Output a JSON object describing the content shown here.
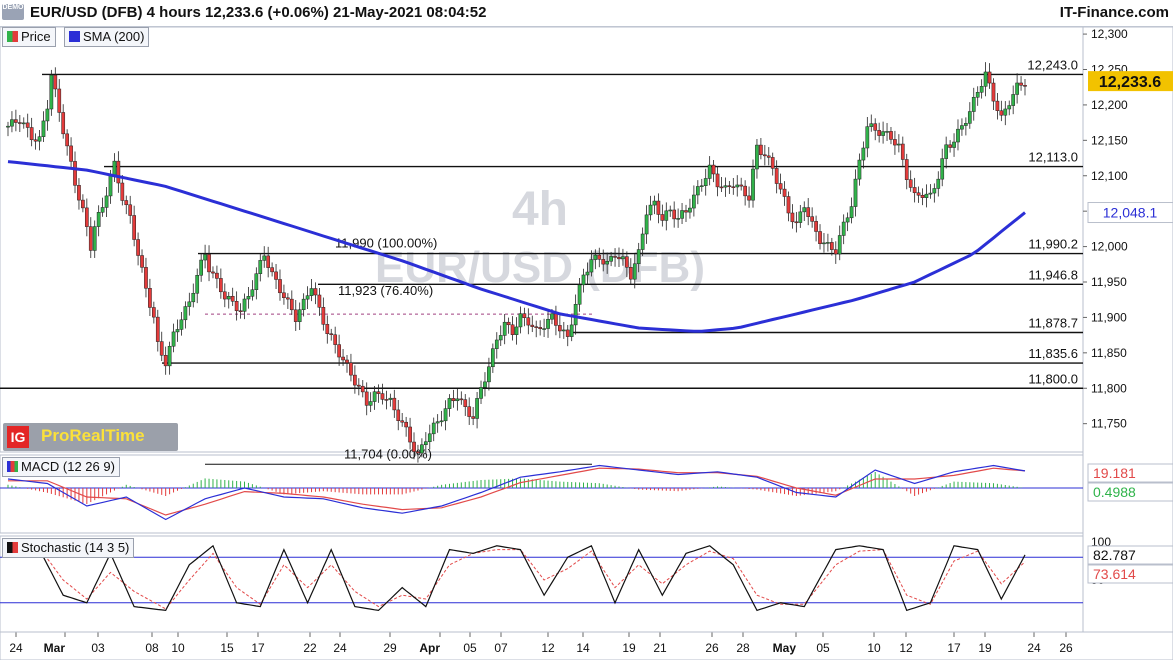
{
  "header": {
    "badge": "DEMO",
    "title": "EUR/USD (DFB) 4 hours 12,233.6 (+0.06%) 21-May-2021 08:04:52",
    "brand": "IT-Finance.com"
  },
  "watermark": {
    "timeframe": "4h",
    "symbol": "EUR/USD (DFB)"
  },
  "provider": {
    "logo": "IG",
    "name": "ProRealTime"
  },
  "colors": {
    "up": "#31b24a",
    "down": "#e33b3b",
    "sma": "#2b2fd6",
    "price_badge": "#f2c200",
    "sma_badge": "#2b2fd6",
    "macd_line": "#2b2fd6",
    "signal_line": "#e24a4a",
    "hist": "#2fb34a",
    "stoch_k": "#111111",
    "stoch_d": "#e24a4a"
  },
  "legend": {
    "price": "Price",
    "sma": "SMA (200)",
    "macd": "MACD (12 26 9)",
    "stoch": "Stochastic (14 3 5)"
  },
  "chart_data": [
    {
      "type": "candlestick",
      "title": "EUR/USD (DFB) 4 hours",
      "y_ticks": [
        "12,300",
        "12,250",
        "12,200",
        "12,150",
        "12,100",
        "12,050",
        "12,000",
        "11,950",
        "11,900",
        "11,850",
        "11,800",
        "11,750"
      ],
      "ylim": [
        11710,
        12310
      ],
      "x_ticks": [
        "24",
        "Mar",
        "03",
        "08",
        "10",
        "15",
        "17",
        "22",
        "24",
        "29",
        "Apr",
        "05",
        "07",
        "12",
        "14",
        "19",
        "21",
        "26",
        "28",
        "May",
        "05",
        "10",
        "12",
        "17",
        "19",
        "24",
        "26"
      ],
      "last_price": "12,233.6",
      "sma_value": "12,048.1",
      "levels": [
        {
          "label": "12,243.0",
          "value": 12243.0
        },
        {
          "label": "12,113.0",
          "value": 12113.0
        },
        {
          "label": "11,990.2",
          "value": 11990.2
        },
        {
          "label": "11,946.8",
          "value": 11946.8
        },
        {
          "label": "11,878.7",
          "value": 11878.7
        },
        {
          "label": "11,835.6",
          "value": 11835.6
        },
        {
          "label": "11,800.0",
          "value": 11800.0
        }
      ],
      "fib_labels": [
        {
          "label": "11,990 (100.00%)",
          "value": 11990
        },
        {
          "label": "11,923 (76.40%)",
          "value": 11923
        },
        {
          "label": "11,704 (0.00%)",
          "value": 11704
        }
      ],
      "price_path": [
        [
          0,
          12170
        ],
        [
          3,
          12180
        ],
        [
          6,
          12155
        ],
        [
          8,
          12150
        ],
        [
          10,
          12200
        ],
        [
          11,
          12243
        ],
        [
          13,
          12190
        ],
        [
          15,
          12140
        ],
        [
          17,
          12090
        ],
        [
          19,
          12050
        ],
        [
          21,
          12000
        ],
        [
          22,
          12030
        ],
        [
          24,
          12055
        ],
        [
          26,
          12100
        ],
        [
          27,
          12115
        ],
        [
          29,
          12070
        ],
        [
          31,
          12040
        ],
        [
          33,
          11990
        ],
        [
          35,
          11940
        ],
        [
          37,
          11900
        ],
        [
          38,
          11860
        ],
        [
          40,
          11837
        ],
        [
          42,
          11875
        ],
        [
          44,
          11900
        ],
        [
          46,
          11920
        ],
        [
          48,
          11960
        ],
        [
          50,
          11990
        ],
        [
          51,
          11970
        ],
        [
          53,
          11950
        ],
        [
          55,
          11930
        ],
        [
          57,
          11920
        ],
        [
          59,
          11910
        ],
        [
          61,
          11930
        ],
        [
          63,
          11960
        ],
        [
          65,
          11990
        ],
        [
          67,
          11960
        ],
        [
          69,
          11940
        ],
        [
          71,
          11920
        ],
        [
          73,
          11900
        ],
        [
          75,
          11920
        ],
        [
          77,
          11946
        ],
        [
          79,
          11910
        ],
        [
          81,
          11880
        ],
        [
          83,
          11860
        ],
        [
          85,
          11840
        ],
        [
          87,
          11820
        ],
        [
          89,
          11800
        ],
        [
          91,
          11780
        ],
        [
          93,
          11790
        ],
        [
          95,
          11790
        ],
        [
          97,
          11780
        ],
        [
          99,
          11760
        ],
        [
          101,
          11740
        ],
        [
          103,
          11715
        ],
        [
          104,
          11704
        ],
        [
          106,
          11730
        ],
        [
          108,
          11745
        ],
        [
          110,
          11760
        ],
        [
          112,
          11780
        ],
        [
          114,
          11790
        ],
        [
          116,
          11770
        ],
        [
          118,
          11760
        ],
        [
          120,
          11800
        ],
        [
          122,
          11830
        ],
        [
          124,
          11870
        ],
        [
          126,
          11890
        ],
        [
          128,
          11880
        ],
        [
          130,
          11900
        ],
        [
          132,
          11895
        ],
        [
          134,
          11880
        ],
        [
          136,
          11890
        ],
        [
          138,
          11900
        ],
        [
          140,
          11885
        ],
        [
          142,
          11870
        ],
        [
          144,
          11920
        ],
        [
          146,
          11960
        ],
        [
          148,
          11980
        ],
        [
          150,
          11985
        ],
        [
          152,
          11975
        ],
        [
          154,
          11990
        ],
        [
          156,
          11980
        ],
        [
          158,
          11960
        ],
        [
          160,
          11990
        ],
        [
          162,
          12050
        ],
        [
          164,
          12060
        ],
        [
          166,
          12040
        ],
        [
          168,
          12050
        ],
        [
          170,
          12040
        ],
        [
          172,
          12050
        ],
        [
          174,
          12070
        ],
        [
          176,
          12090
        ],
        [
          178,
          12110
        ],
        [
          180,
          12090
        ],
        [
          182,
          12080
        ],
        [
          184,
          12090
        ],
        [
          186,
          12080
        ],
        [
          188,
          12070
        ],
        [
          190,
          12140
        ],
        [
          192,
          12130
        ],
        [
          194,
          12110
        ],
        [
          196,
          12080
        ],
        [
          198,
          12050
        ],
        [
          200,
          12030
        ],
        [
          202,
          12060
        ],
        [
          204,
          12030
        ],
        [
          206,
          12010
        ],
        [
          208,
          12000
        ],
        [
          210,
          11995
        ],
        [
          212,
          12030
        ],
        [
          214,
          12060
        ],
        [
          216,
          12120
        ],
        [
          218,
          12170
        ],
        [
          220,
          12165
        ],
        [
          222,
          12160
        ],
        [
          224,
          12155
        ],
        [
          226,
          12140
        ],
        [
          228,
          12100
        ],
        [
          230,
          12070
        ],
        [
          232,
          12075
        ],
        [
          234,
          12070
        ],
        [
          236,
          12100
        ],
        [
          238,
          12140
        ],
        [
          240,
          12150
        ],
        [
          242,
          12170
        ],
        [
          244,
          12190
        ],
        [
          246,
          12220
        ],
        [
          248,
          12243
        ],
        [
          250,
          12210
        ],
        [
          252,
          12180
        ],
        [
          254,
          12205
        ],
        [
          256,
          12225
        ],
        [
          258,
          12233
        ]
      ],
      "sma_path": [
        [
          0,
          12120
        ],
        [
          20,
          12108
        ],
        [
          40,
          12085
        ],
        [
          60,
          12050
        ],
        [
          80,
          12015
        ],
        [
          100,
          11980
        ],
        [
          120,
          11940
        ],
        [
          140,
          11905
        ],
        [
          160,
          11885
        ],
        [
          175,
          11880
        ],
        [
          185,
          11885
        ],
        [
          200,
          11905
        ],
        [
          215,
          11925
        ],
        [
          230,
          11950
        ],
        [
          245,
          11990
        ],
        [
          258,
          12048
        ]
      ]
    },
    {
      "type": "line",
      "title": "MACD (12 26 9)",
      "values_shown": [
        "19.181",
        "0.4988"
      ],
      "macd_path": [
        [
          0,
          10
        ],
        [
          10,
          5
        ],
        [
          20,
          -20
        ],
        [
          30,
          -10
        ],
        [
          40,
          -35
        ],
        [
          50,
          -12
        ],
        [
          60,
          0
        ],
        [
          70,
          -10
        ],
        [
          80,
          -12
        ],
        [
          90,
          -22
        ],
        [
          100,
          -28
        ],
        [
          110,
          -20
        ],
        [
          120,
          -5
        ],
        [
          130,
          12
        ],
        [
          140,
          18
        ],
        [
          150,
          25
        ],
        [
          160,
          20
        ],
        [
          170,
          15
        ],
        [
          180,
          18
        ],
        [
          190,
          12
        ],
        [
          200,
          -5
        ],
        [
          210,
          -10
        ],
        [
          220,
          20
        ],
        [
          230,
          5
        ],
        [
          240,
          18
        ],
        [
          250,
          25
        ],
        [
          258,
          19
        ]
      ],
      "signal_path": [
        [
          0,
          8
        ],
        [
          10,
          8
        ],
        [
          20,
          -10
        ],
        [
          30,
          -12
        ],
        [
          40,
          -30
        ],
        [
          50,
          -18
        ],
        [
          60,
          -4
        ],
        [
          70,
          -6
        ],
        [
          80,
          -10
        ],
        [
          90,
          -18
        ],
        [
          100,
          -24
        ],
        [
          110,
          -22
        ],
        [
          120,
          -10
        ],
        [
          130,
          6
        ],
        [
          140,
          14
        ],
        [
          150,
          22
        ],
        [
          160,
          21
        ],
        [
          170,
          17
        ],
        [
          180,
          17
        ],
        [
          190,
          13
        ],
        [
          200,
          0
        ],
        [
          210,
          -8
        ],
        [
          220,
          10
        ],
        [
          230,
          10
        ],
        [
          240,
          14
        ],
        [
          250,
          22
        ],
        [
          258,
          19
        ]
      ]
    },
    {
      "type": "line",
      "title": "Stochastic (14 3 5)",
      "values_shown": [
        "82.787",
        "73.614"
      ],
      "y_ticks": [
        "100",
        "50"
      ],
      "k_path": [
        [
          0,
          95
        ],
        [
          8,
          90
        ],
        [
          14,
          30
        ],
        [
          20,
          20
        ],
        [
          26,
          85
        ],
        [
          32,
          15
        ],
        [
          40,
          10
        ],
        [
          46,
          70
        ],
        [
          52,
          95
        ],
        [
          58,
          20
        ],
        [
          64,
          15
        ],
        [
          70,
          90
        ],
        [
          76,
          20
        ],
        [
          82,
          90
        ],
        [
          88,
          15
        ],
        [
          94,
          10
        ],
        [
          100,
          40
        ],
        [
          106,
          15
        ],
        [
          112,
          90
        ],
        [
          118,
          85
        ],
        [
          124,
          95
        ],
        [
          130,
          90
        ],
        [
          136,
          30
        ],
        [
          142,
          80
        ],
        [
          148,
          95
        ],
        [
          154,
          20
        ],
        [
          160,
          90
        ],
        [
          166,
          30
        ],
        [
          172,
          85
        ],
        [
          178,
          95
        ],
        [
          184,
          70
        ],
        [
          190,
          10
        ],
        [
          196,
          20
        ],
        [
          202,
          15
        ],
        [
          210,
          90
        ],
        [
          216,
          95
        ],
        [
          222,
          90
        ],
        [
          228,
          10
        ],
        [
          234,
          20
        ],
        [
          240,
          95
        ],
        [
          246,
          90
        ],
        [
          252,
          25
        ],
        [
          258,
          83
        ]
      ],
      "d_path": [
        [
          0,
          90
        ],
        [
          8,
          92
        ],
        [
          14,
          50
        ],
        [
          20,
          25
        ],
        [
          26,
          60
        ],
        [
          32,
          35
        ],
        [
          40,
          12
        ],
        [
          46,
          50
        ],
        [
          52,
          85
        ],
        [
          58,
          40
        ],
        [
          64,
          18
        ],
        [
          70,
          70
        ],
        [
          76,
          40
        ],
        [
          82,
          70
        ],
        [
          88,
          35
        ],
        [
          94,
          15
        ],
        [
          100,
          30
        ],
        [
          106,
          25
        ],
        [
          112,
          70
        ],
        [
          118,
          85
        ],
        [
          124,
          90
        ],
        [
          130,
          90
        ],
        [
          136,
          50
        ],
        [
          142,
          65
        ],
        [
          148,
          88
        ],
        [
          154,
          40
        ],
        [
          160,
          70
        ],
        [
          166,
          45
        ],
        [
          172,
          70
        ],
        [
          178,
          88
        ],
        [
          184,
          78
        ],
        [
          190,
          30
        ],
        [
          196,
          18
        ],
        [
          202,
          18
        ],
        [
          210,
          70
        ],
        [
          216,
          88
        ],
        [
          222,
          90
        ],
        [
          228,
          30
        ],
        [
          234,
          18
        ],
        [
          240,
          75
        ],
        [
          246,
          88
        ],
        [
          252,
          45
        ],
        [
          258,
          74
        ]
      ]
    }
  ]
}
